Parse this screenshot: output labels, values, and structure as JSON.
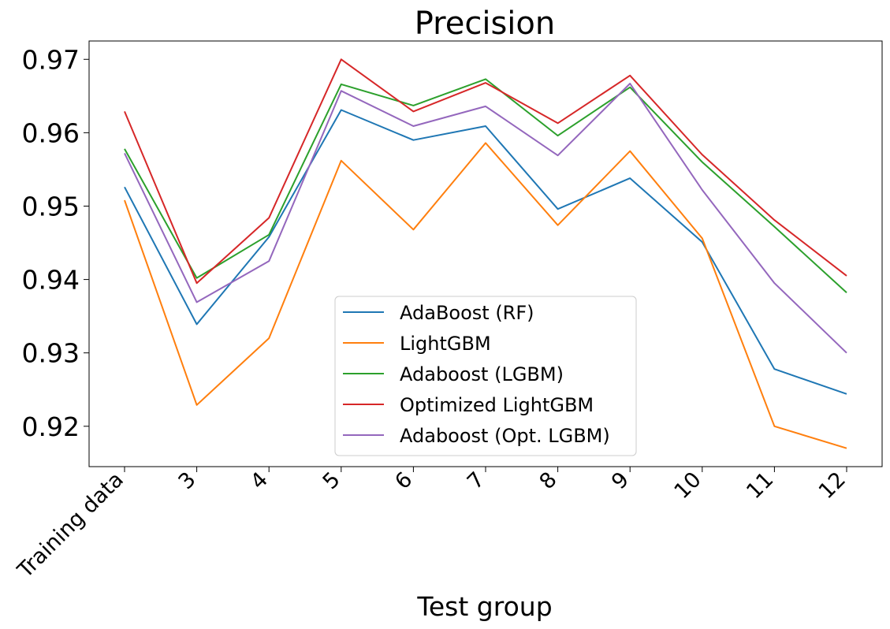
{
  "chart_data": {
    "type": "line",
    "title": "Precision",
    "xlabel": "Test group",
    "ylabel": "",
    "categories": [
      "Training data",
      "3",
      "4",
      "5",
      "6",
      "7",
      "8",
      "9",
      "10",
      "11",
      "12"
    ],
    "ylim": [
      0.9145,
      0.9725
    ],
    "yticks": [
      0.92,
      0.93,
      0.94,
      0.95,
      0.96,
      0.97
    ],
    "ytick_labels": [
      "0.92",
      "0.93",
      "0.94",
      "0.95",
      "0.96",
      "0.97"
    ],
    "grid": false,
    "legend_position": "lower center",
    "series": [
      {
        "name": "AdaBoost (RF)",
        "color": "#1f77b4",
        "values": [
          0.9526,
          0.9339,
          0.9458,
          0.9631,
          0.959,
          0.9609,
          0.9496,
          0.9538,
          0.9451,
          0.9278,
          0.9244
        ]
      },
      {
        "name": "LightGBM",
        "color": "#ff7f0e",
        "values": [
          0.9508,
          0.9229,
          0.932,
          0.9562,
          0.9468,
          0.9586,
          0.9474,
          0.9575,
          0.9456,
          0.92,
          0.917
        ]
      },
      {
        "name": "Adaboost (LGBM)",
        "color": "#2ca02c",
        "values": [
          0.9578,
          0.9402,
          0.9461,
          0.9666,
          0.9637,
          0.9673,
          0.9596,
          0.9662,
          0.956,
          0.9472,
          0.9382
        ]
      },
      {
        "name": "Optimized LightGBM",
        "color": "#d62728",
        "values": [
          0.9629,
          0.9395,
          0.9484,
          0.97,
          0.9629,
          0.9668,
          0.9613,
          0.9678,
          0.957,
          0.9481,
          0.9405
        ]
      },
      {
        "name": "Adaboost (Opt. LGBM)",
        "color": "#9467bd",
        "values": [
          0.9572,
          0.9369,
          0.9425,
          0.9657,
          0.9609,
          0.9636,
          0.9569,
          0.9667,
          0.9522,
          0.9395,
          0.93
        ]
      }
    ]
  }
}
